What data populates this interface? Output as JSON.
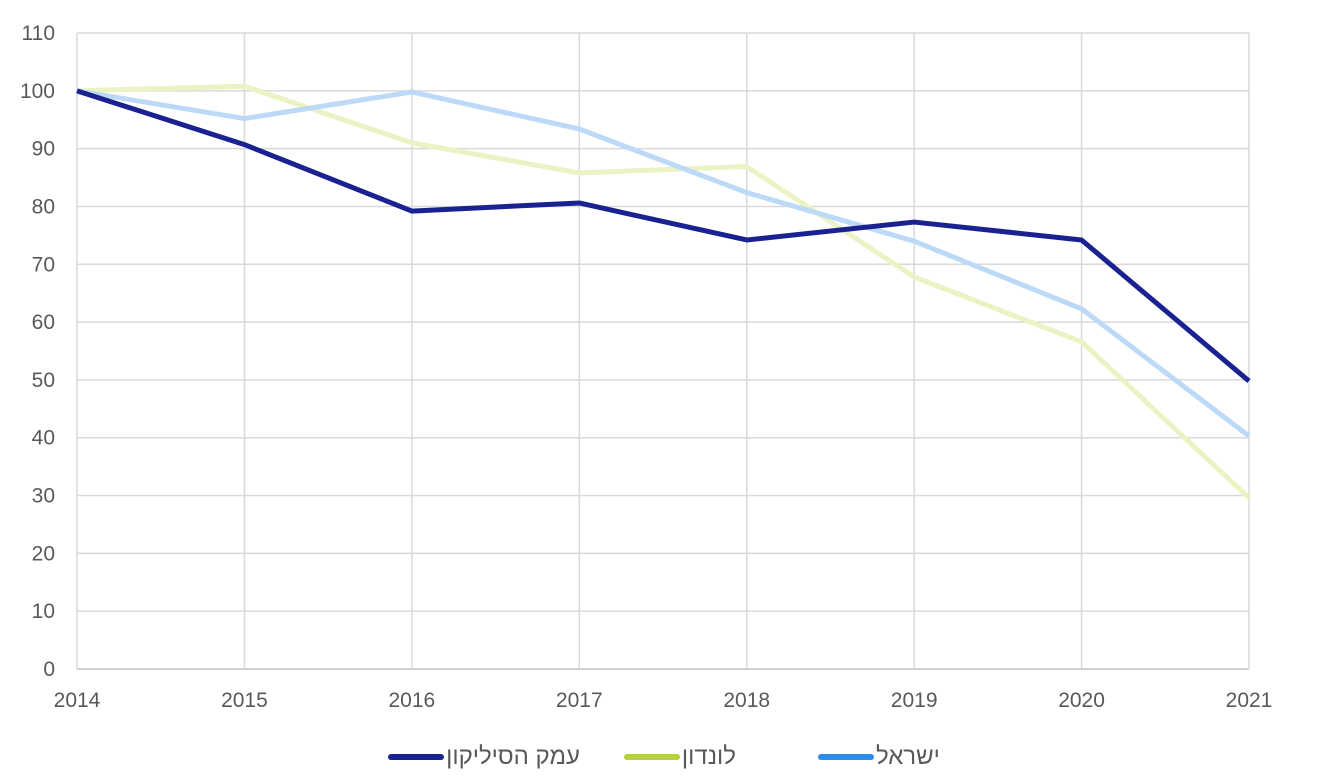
{
  "chart_data": {
    "type": "line",
    "title": "",
    "xlabel": "",
    "ylabel": "",
    "x": [
      "2014",
      "2015",
      "2016",
      "2017",
      "2018",
      "2019",
      "2020",
      "2021"
    ],
    "ylim": [
      0,
      110
    ],
    "yticks": [
      0,
      10,
      20,
      30,
      40,
      50,
      60,
      70,
      80,
      90,
      100,
      110
    ],
    "grid": true,
    "legend_position": "bottom",
    "series": [
      {
        "name": "עמק הסיליקון",
        "color": "#1a2190",
        "plot_color": "#1a2190",
        "values": [
          100,
          90.7,
          79.2,
          80.6,
          74.2,
          77.3,
          74.2,
          49.8
        ]
      },
      {
        "name": "לונדון",
        "color": "#b5d334",
        "plot_color": "#e9f3c4",
        "values": [
          100,
          100.8,
          91,
          85.8,
          86.9,
          67.8,
          56.6,
          29.6
        ]
      },
      {
        "name": "ישראל",
        "color": "#2a8ee8",
        "plot_color": "#bcdaf8",
        "values": [
          100,
          95.2,
          99.8,
          93.4,
          82.4,
          74,
          62.3,
          40.3
        ]
      }
    ]
  }
}
